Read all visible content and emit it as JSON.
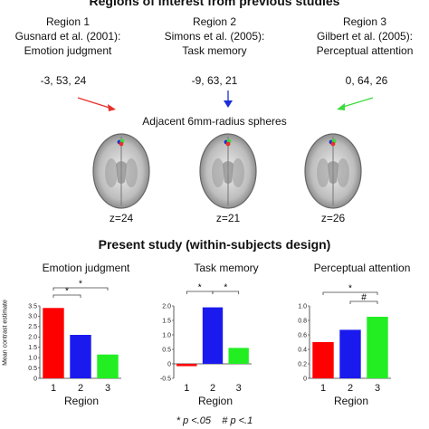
{
  "heading": "Regions of interest from previous studies",
  "regions": [
    {
      "name": "Region 1",
      "citation": "Gusnard et al. (2001):",
      "task": "Emotion judgment",
      "coords": "-3, 53, 24",
      "color": "#e8302a"
    },
    {
      "name": "Region 2",
      "citation": "Simons et al. (2005):",
      "task": "Task memory",
      "coords": "-9, 63, 21",
      "color": "#1b2fd6"
    },
    {
      "name": "Region 3",
      "citation": "Gilbert et al. (2005):",
      "task": "Perceptual attention",
      "coords": "0, 64, 26",
      "color": "#3cdc3c"
    }
  ],
  "spheres_label": "Adjacent 6mm-radius spheres",
  "slices": [
    "z=24",
    "z=21",
    "z=26"
  ],
  "study_heading": "Present study (within-subjects design)",
  "y_axis_label": "Mean contrast estimate",
  "x_axis_label": "Region",
  "legend": {
    "sig": "p <.05",
    "trend": "p <.1",
    "sig_symbol": "*",
    "trend_symbol": "#"
  },
  "chart_data": [
    {
      "type": "bar",
      "title": "Emotion judgment",
      "categories": [
        "1",
        "2",
        "3"
      ],
      "values": [
        3.4,
        2.1,
        1.15
      ],
      "ylim": [
        0,
        3.5
      ],
      "yticks": [
        "0",
        "0.5",
        "1.0",
        "1.5",
        "2.0",
        "2.5",
        "3.0",
        "3.5"
      ],
      "xlabel": "Region",
      "ylabel": "Mean contrast estimate",
      "colors": [
        "#ff0000",
        "#1a1aee",
        "#22ee22"
      ],
      "annotations": [
        {
          "from": "1",
          "to": "2",
          "symbol": "*"
        },
        {
          "from": "1",
          "to": "3",
          "symbol": "*"
        }
      ]
    },
    {
      "type": "bar",
      "title": "Task memory",
      "categories": [
        "1",
        "2",
        "3"
      ],
      "values": [
        -0.08,
        1.95,
        0.55
      ],
      "ylim": [
        -0.5,
        2.0
      ],
      "yticks": [
        "-0.5",
        "0",
        "0.5",
        "1.0",
        "1.5",
        "2.0"
      ],
      "xlabel": "Region",
      "colors": [
        "#ff0000",
        "#1a1aee",
        "#22ee22"
      ],
      "annotations": [
        {
          "from": "1",
          "to": "2",
          "symbol": "*"
        },
        {
          "from": "2",
          "to": "3",
          "symbol": "*"
        }
      ]
    },
    {
      "type": "bar",
      "title": "Perceptual attention",
      "categories": [
        "1",
        "2",
        "3"
      ],
      "values": [
        0.5,
        0.67,
        0.85
      ],
      "ylim": [
        0,
        1.0
      ],
      "yticks": [
        "0",
        "0.2",
        "0.4",
        "0.6",
        "0.8",
        "1.0"
      ],
      "xlabel": "Region",
      "colors": [
        "#ff0000",
        "#1a1aee",
        "#22ee22"
      ],
      "annotations": [
        {
          "from": "1",
          "to": "3",
          "symbol": "*"
        },
        {
          "from": "2",
          "to": "3",
          "symbol": "#"
        }
      ]
    }
  ]
}
